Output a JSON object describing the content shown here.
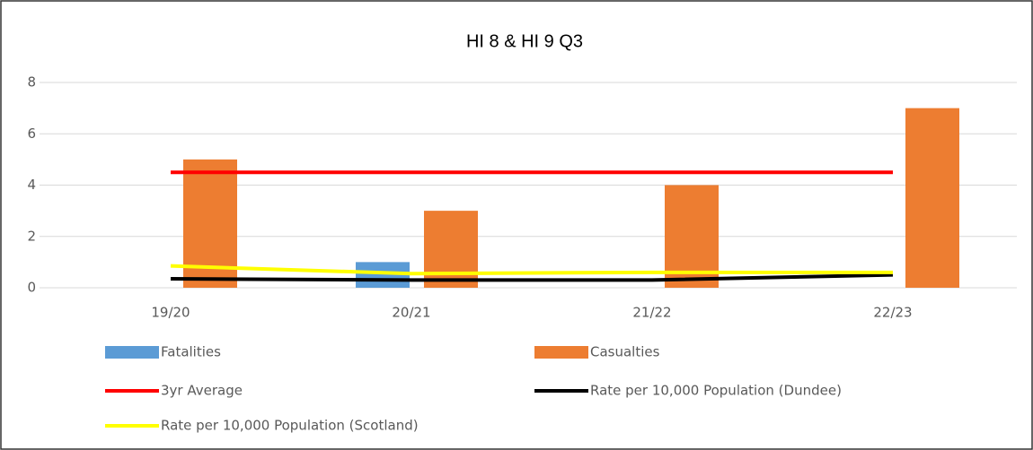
{
  "chart_data": {
    "type": "combo",
    "title": "HI 8 & HI 9 Q3",
    "categories": [
      "19/20",
      "20/21",
      "21/22",
      "22/23"
    ],
    "series": [
      {
        "name": "Fatalities",
        "type": "bar",
        "color": "#5b9bd5",
        "values": [
          0,
          1,
          0,
          0
        ]
      },
      {
        "name": "Casualties",
        "type": "bar",
        "color": "#ed7d31",
        "values": [
          5,
          3,
          4,
          7
        ]
      },
      {
        "name": "3yr Average",
        "type": "line",
        "color": "#ff0000",
        "values": [
          4.5,
          4.5,
          4.5,
          4.5
        ]
      },
      {
        "name": "Rate per 10,000 Population (Dundee)",
        "type": "line",
        "color": "#000000",
        "values": [
          0.35,
          0.3,
          0.3,
          0.5
        ]
      },
      {
        "name": "Rate per 10,000 Population (Scotland)",
        "type": "line",
        "color": "#ffff00",
        "values": [
          0.85,
          0.55,
          0.6,
          0.6
        ]
      }
    ],
    "ylim": [
      0,
      8
    ],
    "yticks": [
      0,
      2,
      4,
      6,
      8
    ],
    "grid": true
  }
}
